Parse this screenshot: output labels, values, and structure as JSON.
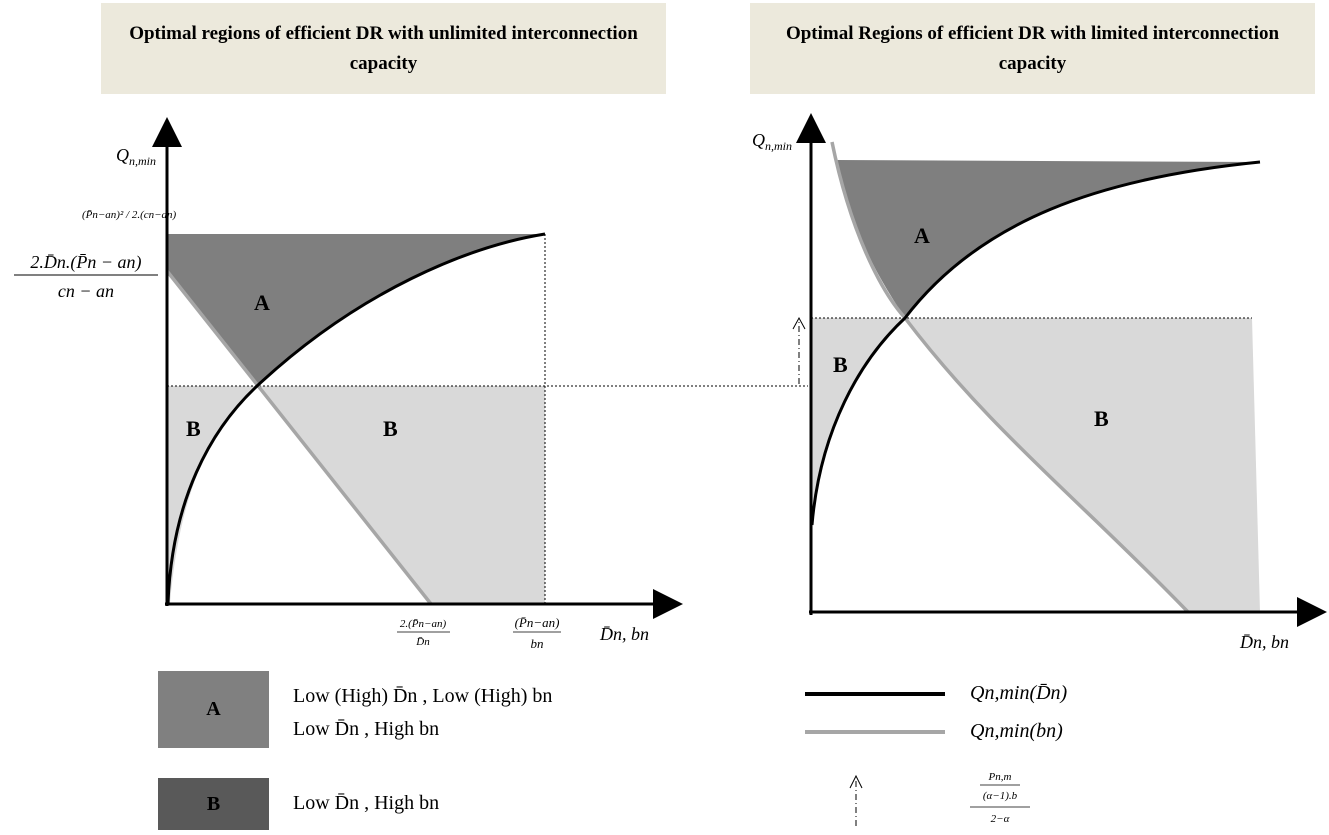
{
  "left_panel": {
    "title": "Optimal regions of efficient DR with unlimited interconnection capacity",
    "y_axis_label": "Q",
    "y_axis_sub": "n,min",
    "y_tick_top": "(P̄n−an)² / 2.(cn−an)",
    "y_tick_mid_num": "2.D̄n.(P̄n − an)",
    "y_tick_mid_den": "cn − an",
    "x_tick_1_num": "2.(P̄n−an)",
    "x_tick_1_den": "D̄n",
    "x_tick_2_num": "(P̄n−an)",
    "x_tick_2_den": "bn",
    "x_axis_label": "D̄n, bn",
    "region_a": "A",
    "region_b_left": "B",
    "region_b_right": "B"
  },
  "right_panel": {
    "title": "Optimal Regions of efficient DR with limited interconnection capacity",
    "y_axis_label": "Q",
    "y_axis_sub": "n,min",
    "x_axis_label": "D̄n, bn",
    "region_a": "A",
    "region_b_left": "B",
    "region_b_right": "B"
  },
  "legend": {
    "a_label": "A",
    "a_line1": "Low (High) D̄n , Low (High) bn",
    "a_line2": "Low D̄n , High bn",
    "b_label": "B",
    "b_line1": "Low D̄n , High bn",
    "black_line": "Qn,min(D̄n)",
    "gray_line": "Qn,min(bn)",
    "arrow_num": "Pn,m",
    "arrow_mid": "(α−1).b",
    "arrow_den": "2−α"
  },
  "colors": {
    "region_a_fill": "#7f7f7f",
    "region_b_fill": "#d9d9d9",
    "curve_black": "#000000",
    "curve_gray": "#a6a6a6",
    "title_bg": "#ece9dc",
    "legend_a": "#808080",
    "legend_b": "#595959"
  }
}
